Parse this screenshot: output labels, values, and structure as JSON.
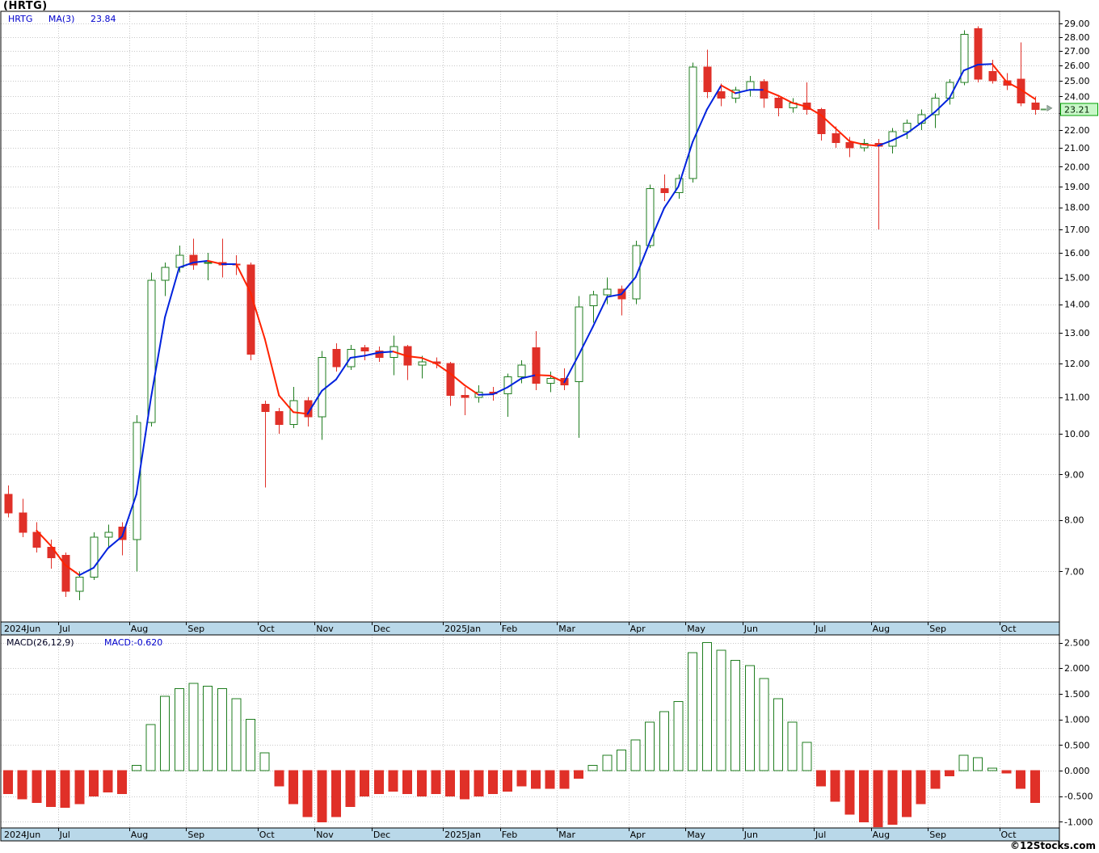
{
  "window": {
    "title": "(HRTG)"
  },
  "price_panel": {
    "legend": {
      "symbol": "HRTG",
      "ma_label": "MA(3)",
      "ma_value": "23.84"
    },
    "last_price": "23.21"
  },
  "macd_panel": {
    "legend_label": "MACD(26,12,9)",
    "legend_value": "MACD:-0.620"
  },
  "footer": {
    "credit": "©12Stocks.com"
  },
  "colors": {
    "up": "#1f7d1f",
    "down": "#e03028",
    "ma_up": "#0022dd",
    "ma_down": "#ff2200",
    "grid": "#c8c8c8",
    "axis_strip": "#b9d8e9",
    "badge_bg": "#c8f7c8",
    "badge_border": "#00a000",
    "legend_blue": "#0000cc"
  },
  "chart_data": [
    {
      "type": "candlestick",
      "title": "HRTG weekly candlesticks with MA(3)",
      "symbol": "HRTG",
      "ma_period": 3,
      "ma_value_shown": 23.84,
      "last_close": 23.21,
      "yscale": "log",
      "grid": true,
      "legend_position": "top-left",
      "ylim": [
        6.14,
        29.93
      ],
      "yticks": [
        29,
        28,
        27,
        26,
        25,
        24,
        23,
        22,
        21,
        20,
        19,
        18,
        17,
        16,
        15,
        14,
        13,
        12,
        11,
        10,
        9,
        8,
        7
      ],
      "months": [
        {
          "label": "2024Jun",
          "i": 0
        },
        {
          "label": "Jul",
          "i": 4
        },
        {
          "label": "Aug",
          "i": 9
        },
        {
          "label": "Sep",
          "i": 13
        },
        {
          "label": "Oct",
          "i": 18
        },
        {
          "label": "Nov",
          "i": 22
        },
        {
          "label": "Dec",
          "i": 26
        },
        {
          "label": "2025Jan",
          "i": 31
        },
        {
          "label": "Feb",
          "i": 35
        },
        {
          "label": "Mar",
          "i": 39
        },
        {
          "label": "Apr",
          "i": 44
        },
        {
          "label": "May",
          "i": 48
        },
        {
          "label": "Jun",
          "i": 52
        },
        {
          "label": "Jul",
          "i": 57
        },
        {
          "label": "Aug",
          "i": 61
        },
        {
          "label": "Sep",
          "i": 65
        },
        {
          "label": "Oct",
          "i": 70
        }
      ],
      "ohlc": [
        [
          8.55,
          8.75,
          8.05,
          8.15
        ],
        [
          8.15,
          8.45,
          7.65,
          7.75
        ],
        [
          7.75,
          7.95,
          7.35,
          7.45
        ],
        [
          7.45,
          7.6,
          7.05,
          7.25
        ],
        [
          7.3,
          7.35,
          6.55,
          6.65
        ],
        [
          6.65,
          7.0,
          6.5,
          6.9
        ],
        [
          6.9,
          7.75,
          6.85,
          7.65
        ],
        [
          7.65,
          7.9,
          7.45,
          7.75
        ],
        [
          7.85,
          7.95,
          7.3,
          7.6
        ],
        [
          7.6,
          10.5,
          7.0,
          10.3
        ],
        [
          10.3,
          15.2,
          10.2,
          14.9
        ],
        [
          14.9,
          15.6,
          14.3,
          15.4
        ],
        [
          15.4,
          16.3,
          15.2,
          15.9
        ],
        [
          15.9,
          16.6,
          15.3,
          15.5
        ],
        [
          15.55,
          16.0,
          14.9,
          15.6
        ],
        [
          15.6,
          16.6,
          15.0,
          15.5
        ],
        [
          15.55,
          15.9,
          15.1,
          15.5
        ],
        [
          15.5,
          15.6,
          12.1,
          12.3
        ],
        [
          10.8,
          10.9,
          8.7,
          10.6
        ],
        [
          10.6,
          10.7,
          10.0,
          10.25
        ],
        [
          10.25,
          11.3,
          10.15,
          10.9
        ],
        [
          10.9,
          11.0,
          10.2,
          10.45
        ],
        [
          10.45,
          12.4,
          9.85,
          12.2
        ],
        [
          12.45,
          12.65,
          11.75,
          11.9
        ],
        [
          11.9,
          12.6,
          11.8,
          12.45
        ],
        [
          12.5,
          12.6,
          12.1,
          12.4
        ],
        [
          12.4,
          12.55,
          12.05,
          12.2
        ],
        [
          12.2,
          12.9,
          11.65,
          12.55
        ],
        [
          12.55,
          12.6,
          11.5,
          11.95
        ],
        [
          11.95,
          12.25,
          11.55,
          12.05
        ],
        [
          12.05,
          12.2,
          11.85,
          12.0
        ],
        [
          12.0,
          12.05,
          10.75,
          11.05
        ],
        [
          11.05,
          11.3,
          10.5,
          11.0
        ],
        [
          11.0,
          11.35,
          10.85,
          11.15
        ],
        [
          11.15,
          11.3,
          10.9,
          11.1
        ],
        [
          11.1,
          11.7,
          10.45,
          11.6
        ],
        [
          11.6,
          12.1,
          11.4,
          11.95
        ],
        [
          12.5,
          13.05,
          11.2,
          11.4
        ],
        [
          11.4,
          11.75,
          11.15,
          11.55
        ],
        [
          11.55,
          11.85,
          11.2,
          11.35
        ],
        [
          11.45,
          14.3,
          9.9,
          13.9
        ],
        [
          13.95,
          14.5,
          13.35,
          14.35
        ],
        [
          14.35,
          15.0,
          14.0,
          14.55
        ],
        [
          14.55,
          14.7,
          13.6,
          14.2
        ],
        [
          14.2,
          16.5,
          14.0,
          16.3
        ],
        [
          16.3,
          19.1,
          16.2,
          18.9
        ],
        [
          18.9,
          19.6,
          18.3,
          18.7
        ],
        [
          18.7,
          19.6,
          18.4,
          19.4
        ],
        [
          19.4,
          26.2,
          19.2,
          25.9
        ],
        [
          25.9,
          27.1,
          23.9,
          24.3
        ],
        [
          24.3,
          24.8,
          23.4,
          23.9
        ],
        [
          23.9,
          24.6,
          23.6,
          24.4
        ],
        [
          24.4,
          25.3,
          24.0,
          24.95
        ],
        [
          24.95,
          25.1,
          23.3,
          23.9
        ],
        [
          23.9,
          24.1,
          22.8,
          23.3
        ],
        [
          23.3,
          23.9,
          23.0,
          23.6
        ],
        [
          23.6,
          24.9,
          22.9,
          23.2
        ],
        [
          23.2,
          23.3,
          21.4,
          21.8
        ],
        [
          21.8,
          22.2,
          21.0,
          21.3
        ],
        [
          21.3,
          21.6,
          20.5,
          21.0
        ],
        [
          21.0,
          21.5,
          20.8,
          21.25
        ],
        [
          21.25,
          21.5,
          17.0,
          21.1
        ],
        [
          21.1,
          22.1,
          20.7,
          21.9
        ],
        [
          21.9,
          22.6,
          21.5,
          22.4
        ],
        [
          22.4,
          23.2,
          22.0,
          22.9
        ],
        [
          22.9,
          24.2,
          22.1,
          23.9
        ],
        [
          23.9,
          25.1,
          23.5,
          24.9
        ],
        [
          24.9,
          28.5,
          24.7,
          28.2
        ],
        [
          28.6,
          28.8,
          24.9,
          25.1
        ],
        [
          25.6,
          26.4,
          24.8,
          25.0
        ],
        [
          25.0,
          25.5,
          24.4,
          24.7
        ],
        [
          25.1,
          27.6,
          23.4,
          23.6
        ],
        [
          23.6,
          24.0,
          22.9,
          23.21
        ]
      ]
    },
    {
      "type": "bar",
      "title": "MACD(26,12,9) histogram",
      "value_shown": -0.62,
      "grid": true,
      "ylim": [
        -1.12,
        2.65
      ],
      "yticks": [
        2.5,
        2.0,
        1.5,
        1.0,
        0.5,
        0.0,
        -0.5,
        -1.0
      ],
      "values": [
        -0.45,
        -0.55,
        -0.62,
        -0.7,
        -0.72,
        -0.65,
        -0.5,
        -0.42,
        -0.45,
        0.1,
        0.9,
        1.45,
        1.6,
        1.7,
        1.65,
        1.6,
        1.4,
        1.0,
        0.35,
        -0.3,
        -0.65,
        -0.9,
        -1.0,
        -0.9,
        -0.7,
        -0.5,
        -0.45,
        -0.4,
        -0.45,
        -0.5,
        -0.45,
        -0.5,
        -0.55,
        -0.5,
        -0.45,
        -0.4,
        -0.3,
        -0.35,
        -0.35,
        -0.35,
        -0.15,
        0.1,
        0.3,
        0.4,
        0.6,
        0.95,
        1.15,
        1.35,
        2.3,
        2.5,
        2.35,
        2.15,
        2.05,
        1.8,
        1.4,
        0.95,
        0.55,
        -0.3,
        -0.6,
        -0.85,
        -1.0,
        -1.1,
        -1.05,
        -0.9,
        -0.65,
        -0.35,
        -0.1,
        0.3,
        0.25,
        0.05,
        -0.05,
        -0.35,
        -0.62
      ]
    }
  ]
}
